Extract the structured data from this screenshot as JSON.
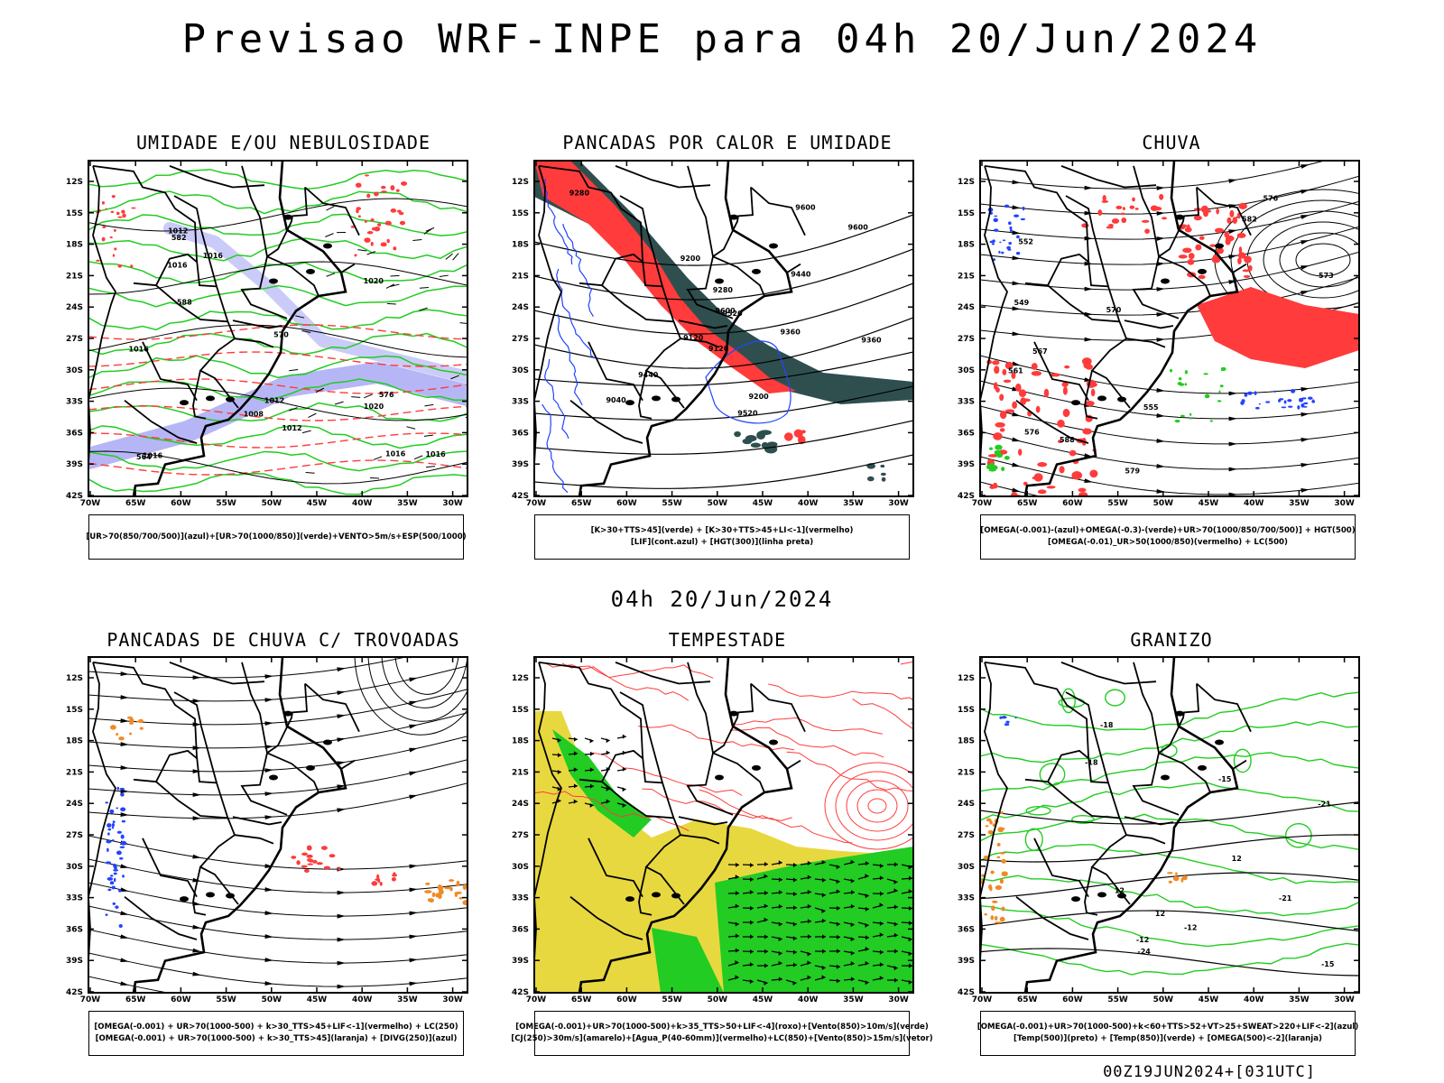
{
  "title": "Previsao WRF-INPE  para 04h 20/Jun/2024",
  "middle_title": "04h 20/Jun/2024",
  "footer": "00Z19JUN2024+[031UTC]",
  "axes": {
    "lat_labels": [
      "12S",
      "15S",
      "18S",
      "21S",
      "24S",
      "27S",
      "30S",
      "33S",
      "36S",
      "39S",
      "42S"
    ],
    "lon_labels": [
      "70W",
      "65W",
      "60W",
      "55W",
      "50W",
      "45W",
      "40W",
      "35W",
      "30W"
    ]
  },
  "colors": {
    "blue": "#2244ff",
    "green": "#22cc22",
    "red": "#ff3b3b",
    "dark_teal": "#2f4f4f",
    "yellow": "#e8d840",
    "orange": "#f08a24",
    "lavender": "#a9a9f5"
  },
  "panels": [
    {
      "id": "umidade",
      "title": "UMIDADE E/OU NEBULOSIDADE",
      "legend": [
        "[UR>70(850/700/500)](azul)+[UR>70(1000/850)](verde)+VENTO>5m/s+ESP(500/1000)"
      ],
      "contour_labels": [
        "1012",
        "1012",
        "1016",
        "1016",
        "1016",
        "1020",
        "1020",
        "1016",
        "1016",
        "1016",
        "1012",
        "1008",
        "570",
        "576",
        "582",
        "588",
        "564"
      ]
    },
    {
      "id": "pancadas-calor",
      "title": "PANCADAS POR CALOR E UMIDADE",
      "legend": [
        "[K>30+TTS>45](verde) + [K>30+TTS>45+LI<-1](vermelho)",
        "[LIF](cont.azul) + [HGT(300)](linha preta)"
      ],
      "contour_labels": [
        "9600",
        "9520",
        "9600",
        "9440",
        "9360",
        "9520",
        "9280",
        "9440",
        "9360",
        "9280",
        "9200",
        "9120",
        "9200",
        "9120",
        "9040",
        "9600"
      ]
    },
    {
      "id": "chuva",
      "title": "CHUVA",
      "legend": [
        "[OMEGA(-0.001)-(azul)+OMEGA(-0.3)-(verde)+UR>70(1000/850/700/500)] + HGT(500)",
        "[OMEGA(-0.01)_UR>50(1000/850)(vermelho) + LC(500)"
      ],
      "contour_labels": [
        "588",
        "582",
        "576",
        "573",
        "570",
        "567",
        "561",
        "555",
        "552",
        "549",
        "579",
        "576"
      ]
    },
    {
      "id": "pancadas-trovoadas",
      "title": "PANCADAS DE CHUVA C/ TROVOADAS",
      "legend": [
        "[OMEGA(-0.001) + UR>70(1000-500) + k>30_TTS>45+LIF<-1](vermelho) + LC(250)",
        "[OMEGA(-0.001) + UR>70(1000-500) + k>30_TTS>45](laranja) + [DIVG(250)](azul)"
      ],
      "contour_labels": []
    },
    {
      "id": "tempestade",
      "title": "TEMPESTADE",
      "legend": [
        "[OMEGA(-0.001)+UR>70(1000-500)+k>35_TTS>50+LIF<-4](roxo)+[Vento(850)>10m/s](verde)",
        "[CJ(250)>30m/s](amarelo)+[Agua_P(40-60mm)](vermelho)+LC(850)+[Vento(850)>15m/s](vetor)"
      ],
      "contour_labels": []
    },
    {
      "id": "granizo",
      "title": "GRANIZO",
      "legend": [
        "[OMEGA(-0.001)+UR>70(1000-500)+k<60+TTS>52+VT>25+SWEAT>220+LIF<-2](azul)",
        "[Temp(500)](preto) + [Temp(850)](verde) + [OMEGA(500)<-2](laranja)"
      ],
      "contour_labels": [
        "-12",
        "-15",
        "-18",
        "-21",
        "-24",
        "-12",
        "-15",
        "-18",
        "-21",
        "12",
        "12",
        "12"
      ]
    }
  ]
}
